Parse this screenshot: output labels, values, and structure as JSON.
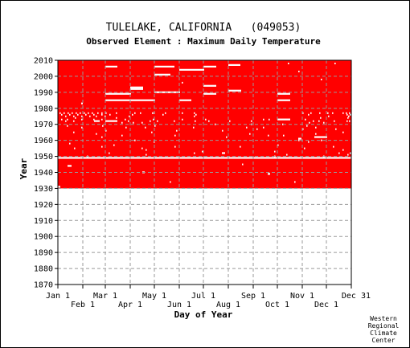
{
  "chart_data": {
    "type": "heatmap",
    "title": "TULELAKE, CALIFORNIA   (049053)",
    "subtitle": "Observed Element : Maximum Daily Temperature",
    "xlabel": "Day of Year",
    "ylabel": "Year",
    "xlim": [
      1,
      365
    ],
    "ylim": [
      1870,
      2010
    ],
    "x_ticks_upper": [
      {
        "label": "Jan 1",
        "day": 1
      },
      {
        "label": "Mar 1",
        "day": 60
      },
      {
        "label": "May 1",
        "day": 121
      },
      {
        "label": "Jul 1",
        "day": 182
      },
      {
        "label": "Sep 1",
        "day": 244
      },
      {
        "label": "Nov 1",
        "day": 305
      },
      {
        "label": "Dec 31",
        "day": 365
      }
    ],
    "x_ticks_lower": [
      {
        "label": "Feb 1",
        "day": 32
      },
      {
        "label": "Apr 1",
        "day": 91
      },
      {
        "label": "Jun 1",
        "day": 152
      },
      {
        "label": "Aug 1",
        "day": 213
      },
      {
        "label": "Oct 1",
        "day": 274
      },
      {
        "label": "Dec 1",
        "day": 335
      }
    ],
    "y_ticks": [
      1870,
      1880,
      1890,
      1900,
      1910,
      1920,
      1930,
      1940,
      1950,
      1960,
      1970,
      1980,
      1990,
      2000,
      2010
    ],
    "data_period": {
      "start_year": 1931,
      "end_year": 2010
    },
    "present_color": "#ff0000",
    "missing_color": "#ffffff",
    "grid": true,
    "missing_segments": [
      {
        "year": 1949,
        "start_day": 1,
        "end_day": 365
      },
      {
        "year": 1931,
        "start_day": 1,
        "end_day": 3
      },
      {
        "year": 1944,
        "start_day": 13,
        "end_day": 17
      },
      {
        "year": 1972,
        "start_day": 46,
        "end_day": 52
      },
      {
        "year": 1972,
        "start_day": 60,
        "end_day": 74
      },
      {
        "year": 1983,
        "start_day": 30,
        "end_day": 31
      },
      {
        "year": 2006,
        "start_day": 60,
        "end_day": 74
      },
      {
        "year": 1989,
        "start_day": 60,
        "end_day": 91
      },
      {
        "year": 1985,
        "start_day": 60,
        "end_day": 91
      },
      {
        "year": 1993,
        "start_day": 91,
        "end_day": 106
      },
      {
        "year": 1992,
        "start_day": 91,
        "end_day": 106
      },
      {
        "year": 1985,
        "start_day": 91,
        "end_day": 121
      },
      {
        "year": 2006,
        "start_day": 121,
        "end_day": 145
      },
      {
        "year": 2001,
        "start_day": 121,
        "end_day": 140
      },
      {
        "year": 1990,
        "start_day": 121,
        "end_day": 152
      },
      {
        "year": 2004,
        "start_day": 152,
        "end_day": 182
      },
      {
        "year": 1985,
        "start_day": 152,
        "end_day": 166
      },
      {
        "year": 2006,
        "start_day": 182,
        "end_day": 197
      },
      {
        "year": 1994,
        "start_day": 182,
        "end_day": 197
      },
      {
        "year": 1989,
        "start_day": 182,
        "end_day": 197
      },
      {
        "year": 2007,
        "start_day": 213,
        "end_day": 227
      },
      {
        "year": 1991,
        "start_day": 213,
        "end_day": 228
      },
      {
        "year": 1973,
        "start_day": 274,
        "end_day": 289
      },
      {
        "year": 1989,
        "start_day": 274,
        "end_day": 289
      },
      {
        "year": 1985,
        "start_day": 274,
        "end_day": 289
      },
      {
        "year": 1962,
        "start_day": 320,
        "end_day": 335
      },
      {
        "year": 1961,
        "start_day": 300,
        "end_day": 303
      },
      {
        "year": 1939,
        "start_day": 262,
        "end_day": 264
      },
      {
        "year": 1952,
        "start_day": 205,
        "end_day": 208
      },
      {
        "year": 1940,
        "start_day": 106,
        "end_day": 108
      }
    ],
    "missing_points": [
      {
        "year": 1977,
        "days": [
          3,
          8,
          13,
          18,
          23,
          28,
          33,
          38,
          43,
          50,
          55,
          60,
          73,
          96,
          103,
          118,
          120,
          134,
          155,
          170,
          305,
          315,
          326,
          336,
          342,
          355,
          359,
          363
        ]
      },
      {
        "year": 1976,
        "days": [
          5,
          15,
          25,
          35,
          45,
          55,
          65,
          93,
          131,
          172,
          312,
          360,
          364
        ]
      },
      {
        "year": 1975,
        "days": [
          10,
          20,
          30,
          40,
          48,
          59,
          89,
          170,
          337,
          362
        ]
      },
      {
        "year": 1974,
        "days": [
          22,
          73,
          327,
          361
        ]
      },
      {
        "year": 1973,
        "days": [
          5,
          12,
          30,
          45,
          55,
          84,
          119,
          155,
          184,
          256,
          263,
          308
        ]
      },
      {
        "year": 1972,
        "days": [
          10,
          20,
          88,
          115,
          124,
          145,
          171,
          188,
          214,
          241,
          318,
          325,
          344,
          360,
          363
        ]
      },
      {
        "year": 1971,
        "days": [
          80,
          94,
          105,
          313,
          331
        ]
      },
      {
        "year": 1970,
        "days": [
          196,
          241,
          280
        ]
      },
      {
        "year": 1969,
        "days": [
          12,
          56,
          121,
          310
        ]
      },
      {
        "year": 1968,
        "days": [
          30,
          85,
          109,
          169,
          235,
          256,
          321
        ]
      },
      {
        "year": 1967,
        "days": [
          248,
          305,
          346
        ]
      },
      {
        "year": 1966,
        "days": [
          60,
          148,
          205
        ]
      },
      {
        "year": 1965,
        "days": [
          20,
          117,
          355
        ]
      },
      {
        "year": 1964,
        "days": [
          48,
          239,
          321
        ]
      },
      {
        "year": 1963,
        "days": [
          80,
          146,
          262,
          281
        ]
      },
      {
        "year": 1962,
        "days": [
          55,
          210
        ]
      },
      {
        "year": 1960,
        "days": [
          96,
          300,
          328
        ]
      },
      {
        "year": 1959,
        "days": [
          120,
          312
        ]
      },
      {
        "year": 1958,
        "days": [
          15
        ]
      },
      {
        "year": 1957,
        "days": [
          70,
          274
        ]
      },
      {
        "year": 1956,
        "days": [
          55,
          146,
          227,
          343
        ]
      },
      {
        "year": 1955,
        "days": [
          21,
          105,
          307
        ]
      },
      {
        "year": 1954,
        "days": [
          110,
          355
        ]
      },
      {
        "year": 1953,
        "days": [
          180,
          270
        ]
      },
      {
        "year": 1952,
        "days": [
          64,
          170,
          350,
          364
        ]
      },
      {
        "year": 1951,
        "days": [
          110,
          285,
          361
        ]
      },
      {
        "year": 1950,
        "days": [
          37,
          270,
          331
        ]
      },
      {
        "year": 2008,
        "days": [
          287,
          345
        ]
      },
      {
        "year": 2003,
        "days": [
          300
        ]
      },
      {
        "year": 1998,
        "days": [
          328
        ]
      },
      {
        "year": 1996,
        "days": [
          155
        ]
      },
      {
        "year": 1934,
        "days": [
          140,
          295
        ]
      },
      {
        "year": 1945,
        "days": [
          230
        ]
      }
    ]
  },
  "credit_lines": [
    "Western",
    "Regional",
    "Climate",
    "Center"
  ]
}
